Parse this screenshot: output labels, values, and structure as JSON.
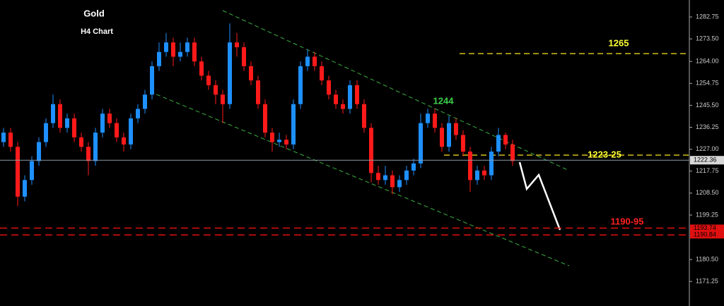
{
  "chart_data": {
    "type": "candlestick",
    "title": "Gold",
    "subtitle": "H4 Chart",
    "annotations": [
      "1265",
      "1244",
      "1223-25",
      "1190-95"
    ],
    "ylim": [
      1160.9,
      1289.9
    ],
    "yticks": [
      1282.75,
      {
        "value": 1273.5,
        "label": "1273.50"
      },
      {
        "value": 1264,
        "label": "1264.00"
      },
      1254.75,
      {
        "value": 1245.5,
        "label": "1245.50"
      },
      1236.25,
      {
        "value": 1227,
        "label": "1227.00"
      },
      1217.75,
      {
        "value": 1208.5,
        "label": "1208.50"
      },
      1199.25,
      {
        "value": 1180.5,
        "label": "1180.50"
      },
      1171.25
    ],
    "current_price": 1222.36,
    "price_levels": [
      1193.74,
      1190.84
    ],
    "up_color": "#1e90ff",
    "down_color": "#ff1a1a",
    "open": [
      1230,
      1234,
      1228,
      1207,
      1214,
      1222,
      1230,
      1238,
      1246,
      1236,
      1240,
      1232,
      1228,
      1222,
      1234,
      1242,
      1238,
      1232,
      1229,
      1240,
      1244,
      1250,
      1262,
      1268,
      1272,
      1266,
      1268,
      1272,
      1264,
      1258,
      1254,
      1250,
      1246,
      1272,
      1270,
      1262,
      1256,
      1246,
      1234,
      1230,
      1231,
      1229,
      1246,
      1262,
      1266,
      1262,
      1256,
      1250,
      1246,
      1244,
      1254,
      1246,
      1236,
      1217,
      1214,
      1216,
      1211,
      1214,
      1218,
      1221,
      1238,
      1242,
      1236,
      1228,
      1238,
      1233,
      1226,
      1214,
      1218,
      1216,
      1226,
      1233,
      1229
    ],
    "high": [
      1236,
      1236,
      1230,
      1216,
      1224,
      1232,
      1240,
      1250,
      1248,
      1242,
      1242,
      1234,
      1230,
      1236,
      1244,
      1244,
      1240,
      1234,
      1242,
      1246,
      1252,
      1264,
      1272,
      1276,
      1274,
      1272,
      1274,
      1274,
      1266,
      1260,
      1256,
      1252,
      1280,
      1276,
      1272,
      1264,
      1258,
      1248,
      1236,
      1234,
      1233,
      1248,
      1264,
      1269,
      1268,
      1264,
      1258,
      1252,
      1248,
      1256,
      1256,
      1248,
      1238,
      1220,
      1220,
      1218,
      1216,
      1220,
      1223,
      1242,
      1244,
      1244,
      1238,
      1241,
      1240,
      1235,
      1228,
      1220,
      1220,
      1228,
      1236,
      1234,
      1231
    ],
    "low": [
      1228,
      1226,
      1203,
      1205,
      1212,
      1220,
      1228,
      1236,
      1234,
      1234,
      1230,
      1226,
      1216,
      1220,
      1232,
      1236,
      1230,
      1226,
      1227,
      1238,
      1242,
      1248,
      1260,
      1266,
      1262,
      1264,
      1266,
      1262,
      1256,
      1252,
      1246,
      1238,
      1244,
      1266,
      1260,
      1254,
      1244,
      1232,
      1226,
      1228,
      1227,
      1227,
      1244,
      1260,
      1260,
      1254,
      1248,
      1244,
      1242,
      1242,
      1244,
      1234,
      1213,
      1212,
      1212,
      1208,
      1209,
      1212,
      1216,
      1219,
      1236,
      1234,
      1226,
      1226,
      1231,
      1224,
      1209,
      1212,
      1214,
      1214,
      1224,
      1227,
      1220
    ],
    "close": [
      1234,
      1228,
      1207,
      1214,
      1222,
      1230,
      1238,
      1246,
      1236,
      1240,
      1232,
      1228,
      1222,
      1234,
      1242,
      1238,
      1232,
      1229,
      1240,
      1244,
      1250,
      1262,
      1268,
      1272,
      1266,
      1268,
      1272,
      1264,
      1258,
      1254,
      1250,
      1246,
      1272,
      1270,
      1262,
      1256,
      1246,
      1234,
      1230,
      1231,
      1229,
      1246,
      1262,
      1266,
      1262,
      1256,
      1250,
      1246,
      1244,
      1254,
      1246,
      1236,
      1217,
      1214,
      1216,
      1211,
      1214,
      1218,
      1221,
      1238,
      1242,
      1236,
      1228,
      1238,
      1233,
      1226,
      1214,
      1218,
      1216,
      1226,
      1233,
      1229,
      1222
    ]
  }
}
